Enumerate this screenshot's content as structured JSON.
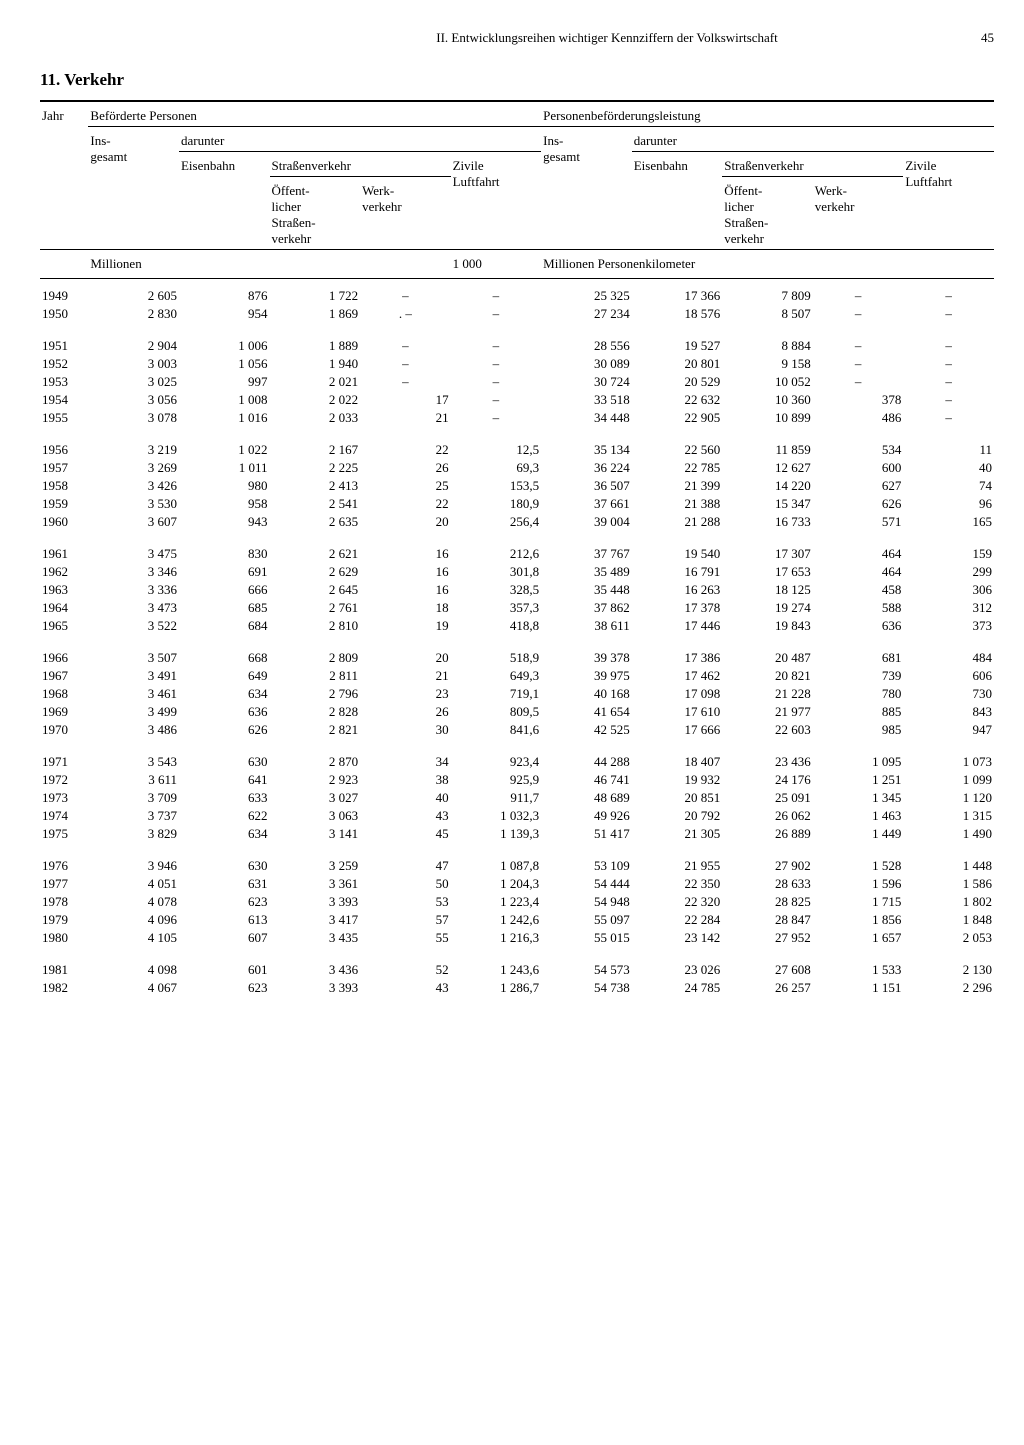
{
  "page": {
    "running_head": "II. Entwicklungsreihen wichtiger Kennziffern der Volkswirtschaft",
    "number": "45"
  },
  "section_title": "11. Verkehr",
  "headers": {
    "jahr": "Jahr",
    "befoerderte": "Beförderte Personen",
    "leistung": "Personenbeförderungsleistung",
    "insgesamt": "Ins-\ngesamt",
    "darunter": "darunter",
    "eisenbahn": "Eisenbahn",
    "strassenverkehr": "Straßenverkehr",
    "zivile": "Zivile\nLuftfahrt",
    "oeffentlich": "Öffent-\nlicher\nStraßen-\nverkehr",
    "werkverkehr": "Werk-\nverkehr",
    "unit_millionen": "Millionen",
    "unit_1000": "1 000",
    "unit_pkm": "Millionen Personenkilometer"
  },
  "groups": [
    [
      [
        "1949",
        "2 605",
        "876",
        "1 722",
        "–",
        "–",
        "25 325",
        "17 366",
        "7 809",
        "–",
        "–"
      ],
      [
        "1950",
        "2 830",
        "954",
        "1 869",
        ". –",
        "–",
        "27 234",
        "18 576",
        "8 507",
        "–",
        "–"
      ]
    ],
    [
      [
        "1951",
        "2 904",
        "1 006",
        "1 889",
        "–",
        "–",
        "28 556",
        "19 527",
        "8 884",
        "–",
        "–"
      ],
      [
        "1952",
        "3 003",
        "1 056",
        "1 940",
        "–",
        "–",
        "30 089",
        "20 801",
        "9 158",
        "–",
        "–"
      ],
      [
        "1953",
        "3 025",
        "997",
        "2 021",
        "–",
        "–",
        "30 724",
        "20 529",
        "10 052",
        "–",
        "–"
      ],
      [
        "1954",
        "3 056",
        "1 008",
        "2 022",
        "17",
        "–",
        "33 518",
        "22 632",
        "10 360",
        "378",
        "–"
      ],
      [
        "1955",
        "3 078",
        "1 016",
        "2 033",
        "21",
        "–",
        "34 448",
        "22 905",
        "10 899",
        "486",
        "–"
      ]
    ],
    [
      [
        "1956",
        "3 219",
        "1 022",
        "2 167",
        "22",
        "12,5",
        "35 134",
        "22 560",
        "11 859",
        "534",
        "11"
      ],
      [
        "1957",
        "3 269",
        "1 011",
        "2 225",
        "26",
        "69,3",
        "36 224",
        "22 785",
        "12 627",
        "600",
        "40"
      ],
      [
        "1958",
        "3 426",
        "980",
        "2 413",
        "25",
        "153,5",
        "36 507",
        "21 399",
        "14 220",
        "627",
        "74"
      ],
      [
        "1959",
        "3 530",
        "958",
        "2 541",
        "22",
        "180,9",
        "37 661",
        "21 388",
        "15 347",
        "626",
        "96"
      ],
      [
        "1960",
        "3 607",
        "943",
        "2 635",
        "20",
        "256,4",
        "39 004",
        "21 288",
        "16 733",
        "571",
        "165"
      ]
    ],
    [
      [
        "1961",
        "3 475",
        "830",
        "2 621",
        "16",
        "212,6",
        "37 767",
        "19 540",
        "17 307",
        "464",
        "159"
      ],
      [
        "1962",
        "3 346",
        "691",
        "2 629",
        "16",
        "301,8",
        "35 489",
        "16 791",
        "17 653",
        "464",
        "299"
      ],
      [
        "1963",
        "3 336",
        "666",
        "2 645",
        "16",
        "328,5",
        "35 448",
        "16 263",
        "18 125",
        "458",
        "306"
      ],
      [
        "1964",
        "3 473",
        "685",
        "2 761",
        "18",
        "357,3",
        "37 862",
        "17 378",
        "19 274",
        "588",
        "312"
      ],
      [
        "1965",
        "3 522",
        "684",
        "2 810",
        "19",
        "418,8",
        "38 611",
        "17 446",
        "19 843",
        "636",
        "373"
      ]
    ],
    [
      [
        "1966",
        "3 507",
        "668",
        "2 809",
        "20",
        "518,9",
        "39 378",
        "17 386",
        "20 487",
        "681",
        "484"
      ],
      [
        "1967",
        "3 491",
        "649",
        "2 811",
        "21",
        "649,3",
        "39 975",
        "17 462",
        "20 821",
        "739",
        "606"
      ],
      [
        "1968",
        "3 461",
        "634",
        "2 796",
        "23",
        "719,1",
        "40 168",
        "17 098",
        "21 228",
        "780",
        "730"
      ],
      [
        "1969",
        "3 499",
        "636",
        "2 828",
        "26",
        "809,5",
        "41 654",
        "17 610",
        "21 977",
        "885",
        "843"
      ],
      [
        "1970",
        "3 486",
        "626",
        "2 821",
        "30",
        "841,6",
        "42 525",
        "17 666",
        "22 603",
        "985",
        "947"
      ]
    ],
    [
      [
        "1971",
        "3 543",
        "630",
        "2 870",
        "34",
        "923,4",
        "44 288",
        "18 407",
        "23 436",
        "1 095",
        "1 073"
      ],
      [
        "1972",
        "3 611",
        "641",
        "2 923",
        "38",
        "925,9",
        "46 741",
        "19 932",
        "24 176",
        "1 251",
        "1 099"
      ],
      [
        "1973",
        "3 709",
        "633",
        "3 027",
        "40",
        "911,7",
        "48 689",
        "20 851",
        "25 091",
        "1 345",
        "1 120"
      ],
      [
        "1974",
        "3 737",
        "622",
        "3 063",
        "43",
        "1 032,3",
        "49 926",
        "20 792",
        "26 062",
        "1 463",
        "1 315"
      ],
      [
        "1975",
        "3 829",
        "634",
        "3 141",
        "45",
        "1 139,3",
        "51 417",
        "21 305",
        "26 889",
        "1 449",
        "1 490"
      ]
    ],
    [
      [
        "1976",
        "3 946",
        "630",
        "3 259",
        "47",
        "1 087,8",
        "53 109",
        "21 955",
        "27 902",
        "1 528",
        "1 448"
      ],
      [
        "1977",
        "4 051",
        "631",
        "3 361",
        "50",
        "1 204,3",
        "54 444",
        "22 350",
        "28 633",
        "1 596",
        "1 586"
      ],
      [
        "1978",
        "4 078",
        "623",
        "3 393",
        "53",
        "1 223,4",
        "54 948",
        "22 320",
        "28 825",
        "1 715",
        "1 802"
      ],
      [
        "1979",
        "4 096",
        "613",
        "3 417",
        "57",
        "1 242,6",
        "55 097",
        "22 284",
        "28 847",
        "1 856",
        "1 848"
      ],
      [
        "1980",
        "4 105",
        "607",
        "3 435",
        "55",
        "1 216,3",
        "55 015",
        "23 142",
        "27 952",
        "1 657",
        "2 053"
      ]
    ],
    [
      [
        "1981",
        "4 098",
        "601",
        "3 436",
        "52",
        "1 243,6",
        "54 573",
        "23 026",
        "27 608",
        "1 533",
        "2 130"
      ],
      [
        "1982",
        "4 067",
        "623",
        "3 393",
        "43",
        "1 286,7",
        "54 738",
        "24 785",
        "26 257",
        "1 151",
        "2 296"
      ]
    ]
  ]
}
